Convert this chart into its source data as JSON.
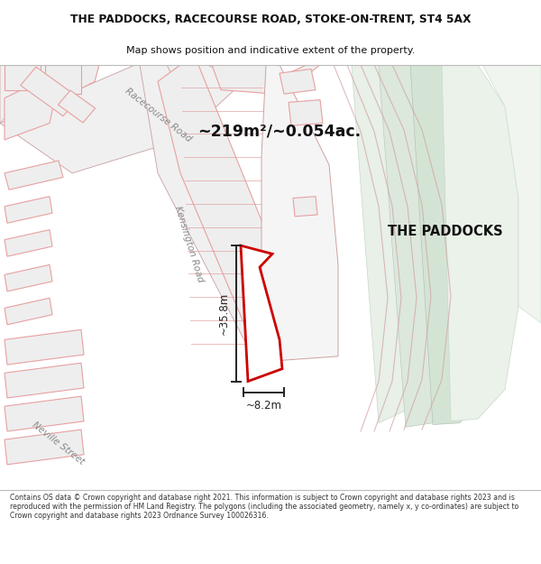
{
  "title_line1": "THE PADDOCKS, RACECOURSE ROAD, STOKE-ON-TRENT, ST4 5AX",
  "title_line2": "Map shows position and indicative extent of the property.",
  "area_label": "~219m²/~0.054ac.",
  "property_label": "THE PADDOCKS",
  "dim_vertical": "~35.8m",
  "dim_horizontal": "~8.2m",
  "footer_text": "Contains OS data © Crown copyright and database right 2021. This information is subject to Crown copyright and database rights 2023 and is reproduced with the permission of HM Land Registry. The polygons (including the associated geometry, namely x, y co-ordinates) are subject to Crown copyright and database rights 2023 Ordnance Survey 100026316.",
  "bg_color": "#ffffff",
  "map_bg": "#ffffff",
  "bldg_fill": "#eeeeee",
  "bldg_edge": "#e8a0a0",
  "bldg_lw": 0.8,
  "road_fill": "#f0f0f0",
  "road_edge": "#d0a0a0",
  "green1": "#ddeedd",
  "green2": "#cce0cc",
  "green3": "#d8e8d8",
  "prop_fill": "#ffffff",
  "prop_edge": "#cc0000",
  "prop_lw": 2.0,
  "dim_color": "#222222",
  "text_color": "#111111",
  "road_text_color": "#888888"
}
